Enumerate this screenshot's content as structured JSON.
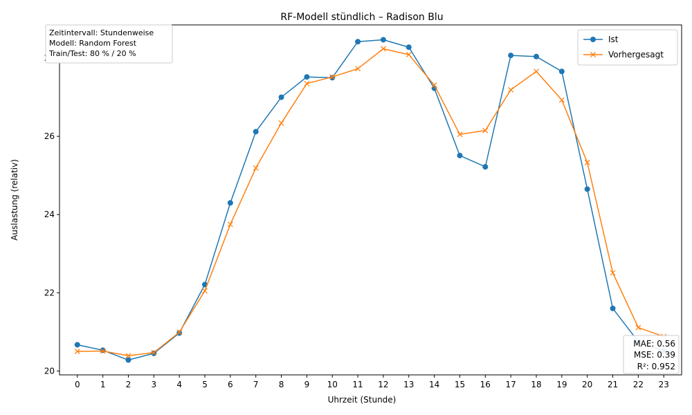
{
  "chart_data": {
    "type": "line",
    "title": "RF-Modell stündlich – Radison Blu",
    "xlabel": "Uhrzeit (Stunde)",
    "ylabel": "Auslastung (relativ)",
    "x": [
      0,
      1,
      2,
      3,
      4,
      5,
      6,
      7,
      8,
      9,
      10,
      11,
      12,
      13,
      14,
      15,
      16,
      17,
      18,
      19,
      20,
      21,
      22,
      23
    ],
    "xlim": [
      -0.7,
      23.7
    ],
    "ylim": [
      19.9,
      28.85
    ],
    "yticks": [
      20,
      22,
      24,
      26,
      28
    ],
    "grid": false,
    "legend_position": "top-right",
    "series": [
      {
        "name": "Ist",
        "color": "#1f77b4",
        "marker": "circle",
        "values": [
          20.67,
          20.53,
          20.28,
          20.45,
          20.97,
          22.21,
          24.3,
          26.12,
          27.0,
          27.52,
          27.5,
          28.42,
          28.47,
          28.28,
          27.23,
          25.51,
          25.22,
          28.07,
          28.04,
          27.66,
          24.65,
          21.6,
          20.75,
          20.51
        ]
      },
      {
        "name": "Vorhergesagt",
        "color": "#ff7f0e",
        "marker": "x",
        "values": [
          20.5,
          20.51,
          20.39,
          20.47,
          20.99,
          22.05,
          23.75,
          25.19,
          26.34,
          27.35,
          27.52,
          27.73,
          28.24,
          28.09,
          27.31,
          26.05,
          26.15,
          27.19,
          27.66,
          26.93,
          25.33,
          22.51,
          21.11,
          20.88
        ]
      }
    ],
    "annotations": {
      "info_lines": [
        "Zeitintervall: Stundenweise",
        "Modell: Random Forest",
        "Train/Test: 80 % / 20 %"
      ],
      "metric_lines": [
        "MAE: 0.56",
        "MSE: 0.39",
        "R²: 0.952"
      ]
    }
  }
}
